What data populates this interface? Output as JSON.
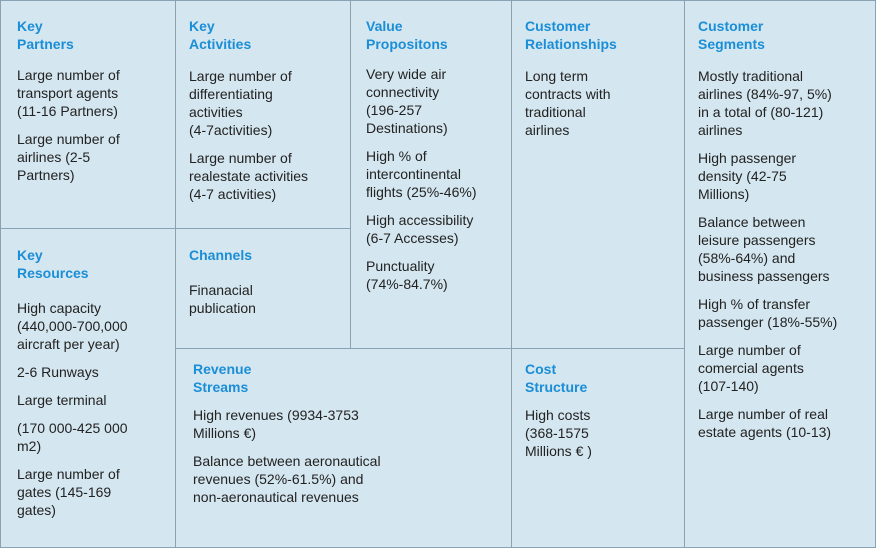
{
  "canvas": {
    "key_partners": {
      "title": "Key\nPartners",
      "items": [
        "Large number of\ntransport agents\n(11-16 Partners)",
        "Large number of\nairlines (2-5\nPartners)"
      ]
    },
    "key_activities": {
      "title": "Key\nActivities",
      "items": [
        "Large number of\ndifferentiating\nactivities\n(4-7activities)",
        "Large number of\nrealestate activities\n(4-7 activities)"
      ]
    },
    "value_propositions": {
      "title": "Value\nPropositons",
      "items": [
        "Very wide air\nconnectivity\n(196-257\nDestinations)",
        "High % of\nintercontinental\nflights (25%-46%)",
        "High accessibility\n(6-7 Accesses)",
        "Punctuality\n(74%-84.7%)"
      ]
    },
    "customer_relationships": {
      "title": "Customer\nRelationships",
      "items": [
        "Long term\ncontracts with\ntraditional\nairlines"
      ]
    },
    "customer_segments": {
      "title": "Customer\nSegments",
      "items": [
        "Mostly traditional\nairlines (84%-97, 5%)\nin a total of (80-121)\nairlines",
        "High passenger\ndensity (42-75\nMillions)",
        "Balance between\nleisure passengers\n(58%-64%) and\nbusiness passengers",
        "High % of  transfer\npassenger (18%-55%)",
        "Large number of\ncomercial agents\n(107-140)",
        "Large number of real\nestate agents (10-13)"
      ]
    },
    "key_resources": {
      "title": "Key\nResources",
      "items": [
        "High capacity\n(440,000-700,000\naircraft per year)",
        "2-6 Runways",
        "Large terminal",
        "(170 000-425 000\nm2)",
        "Large number of\ngates (145-169\ngates)"
      ]
    },
    "channels": {
      "title": "Channels",
      "items": [
        "Finanacial\npublication"
      ]
    },
    "revenue_streams": {
      "title": "Revenue\nStreams",
      "items": [
        "High revenues (9934-3753\nMillions €)",
        "Balance between aeronautical\nrevenues (52%-61.5%) and\nnon-aeronautical revenues"
      ]
    },
    "cost_structure": {
      "title": "Cost\nStructure",
      "items": [
        "High costs\n(368-1575\nMillions € )"
      ]
    }
  },
  "colors": {
    "cell_background": "#d4e6ef",
    "title": "#1a8ed7",
    "text": "#222222",
    "border": "#8aa3b3"
  }
}
